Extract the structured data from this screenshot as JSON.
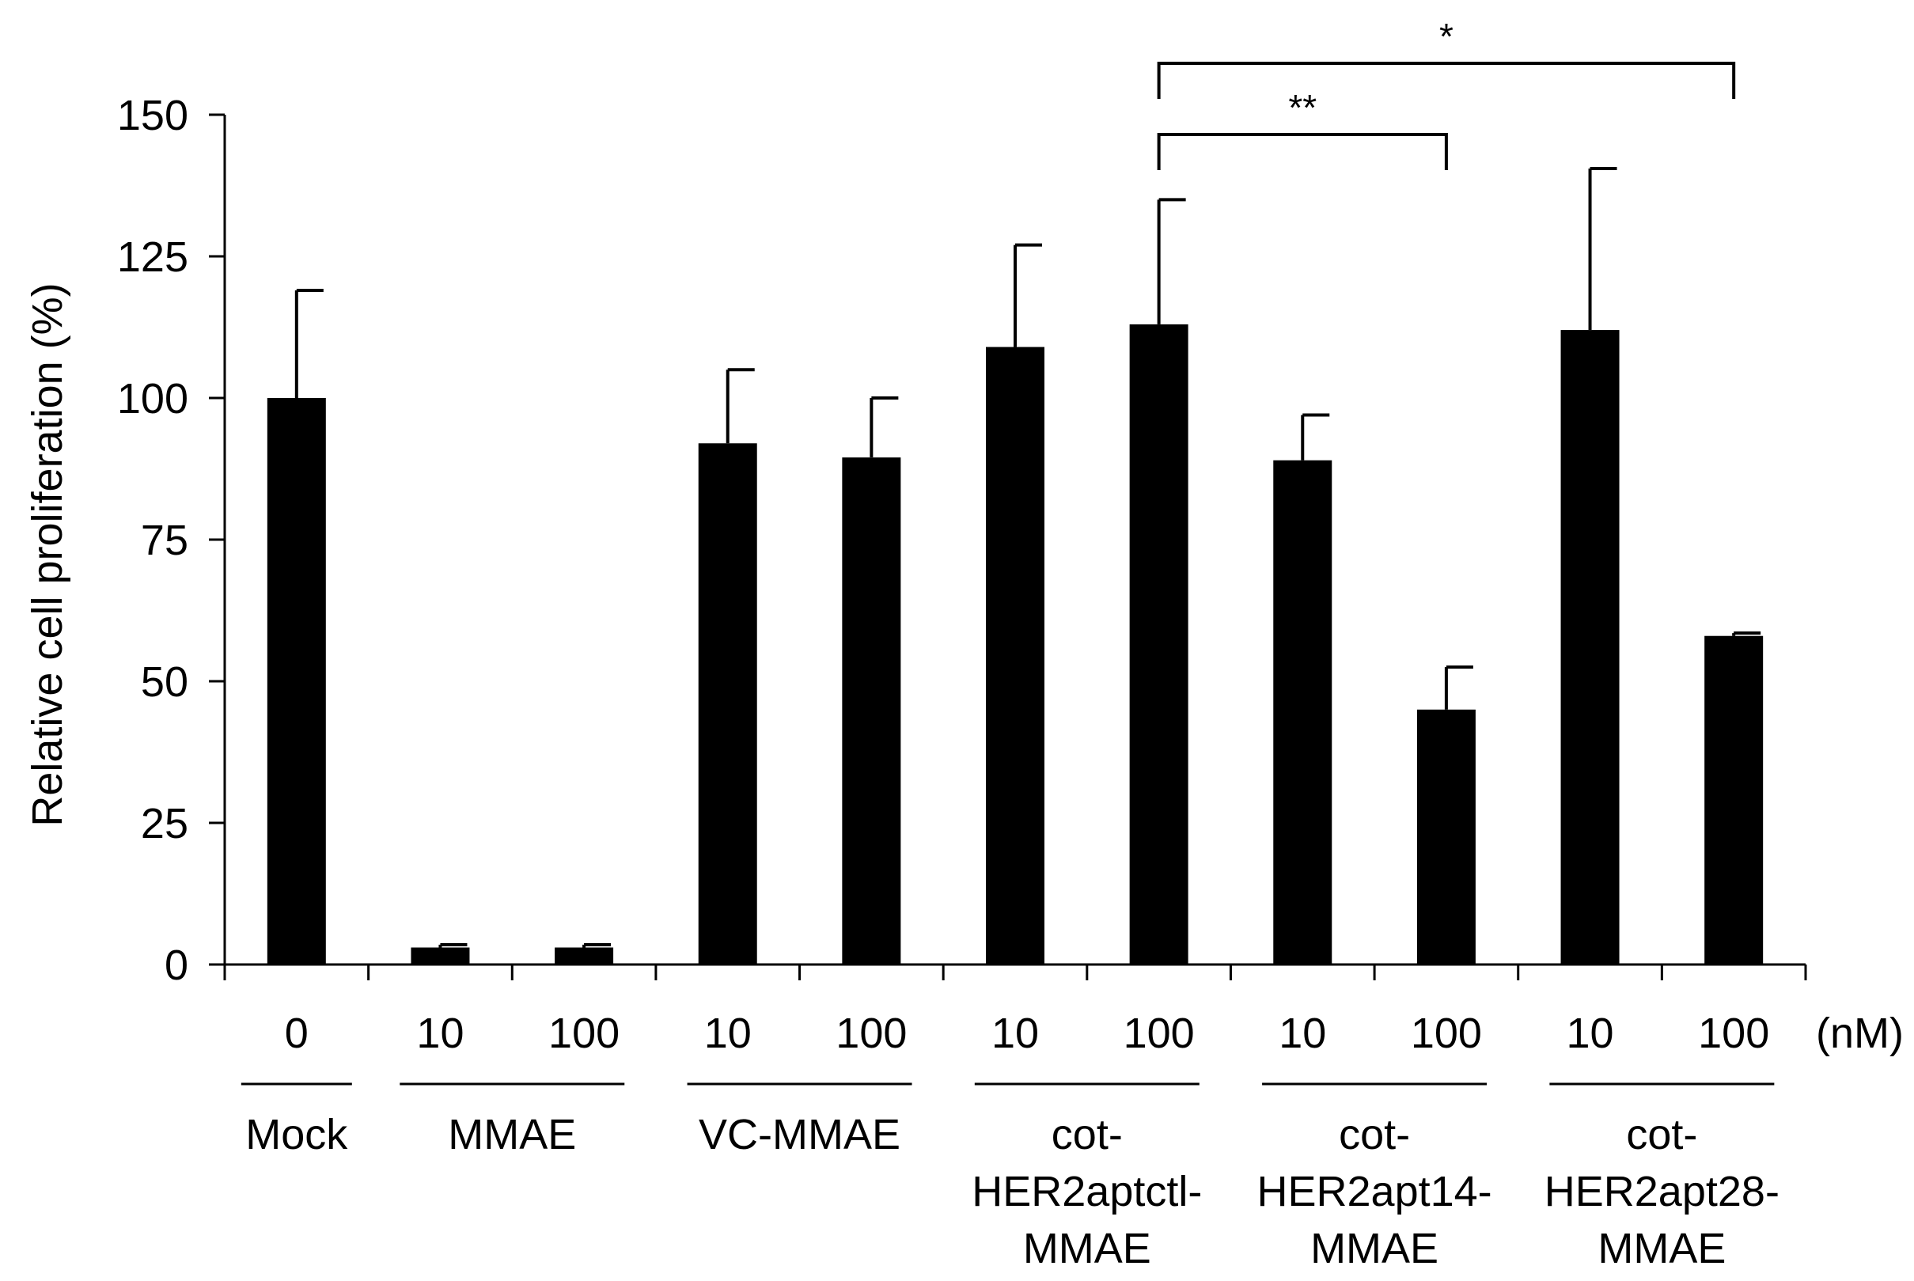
{
  "chart_data": {
    "type": "bar",
    "ylabel": "Relative cell proliferation (%)",
    "ylim": [
      0,
      150
    ],
    "yticks": [
      "0",
      "25",
      "50",
      "75",
      "100",
      "125",
      "150"
    ],
    "unit_label": "(nM)",
    "bars": [
      {
        "group": "Mock",
        "dose": "0",
        "value": 100,
        "error": 19
      },
      {
        "group": "MMAE",
        "dose": "10",
        "value": 3,
        "error": 0.5
      },
      {
        "group": "MMAE",
        "dose": "100",
        "value": 3,
        "error": 0.5
      },
      {
        "group": "VC-MMAE",
        "dose": "10",
        "value": 92,
        "error": 13
      },
      {
        "group": "VC-MMAE",
        "dose": "100",
        "value": 89.5,
        "error": 10.5
      },
      {
        "group": "cot-HER2aptctl-MMAE",
        "dose": "10",
        "value": 109,
        "error": 18
      },
      {
        "group": "cot-HER2aptctl-MMAE",
        "dose": "100",
        "value": 113,
        "error": 22
      },
      {
        "group": "cot-HER2apt14-MMAE",
        "dose": "10",
        "value": 89,
        "error": 8
      },
      {
        "group": "cot-HER2apt14-MMAE",
        "dose": "100",
        "value": 45,
        "error": 7.5
      },
      {
        "group": "cot-HER2apt28-MMAE",
        "dose": "10",
        "value": 112,
        "error": 28.5
      },
      {
        "group": "cot-HER2apt28-MMAE",
        "dose": "100",
        "value": 58,
        "error": 0.5
      }
    ],
    "groups": [
      {
        "label_lines": [
          "Mock"
        ],
        "bar_indices": [
          0
        ]
      },
      {
        "label_lines": [
          "MMAE"
        ],
        "bar_indices": [
          1,
          2
        ]
      },
      {
        "label_lines": [
          "VC-MMAE"
        ],
        "bar_indices": [
          3,
          4
        ]
      },
      {
        "label_lines": [
          "cot-",
          "HER2aptctl-",
          "MMAE"
        ],
        "bar_indices": [
          5,
          6
        ]
      },
      {
        "label_lines": [
          "cot-",
          "HER2apt14-",
          "MMAE"
        ],
        "bar_indices": [
          7,
          8
        ]
      },
      {
        "label_lines": [
          "cot-",
          "HER2apt28-",
          "MMAE"
        ],
        "bar_indices": [
          9,
          10
        ]
      }
    ],
    "significance": [
      {
        "from_bar": 6,
        "to_bar": 8,
        "label": "**"
      },
      {
        "from_bar": 6,
        "to_bar": 10,
        "label": "*"
      }
    ]
  }
}
